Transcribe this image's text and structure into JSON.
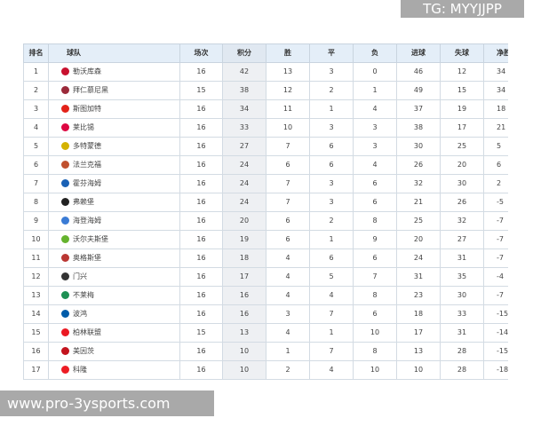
{
  "table": {
    "headers": [
      "排名",
      "球队",
      "场次",
      "积分",
      "胜",
      "平",
      "负",
      "进球",
      "失球",
      "净胜"
    ],
    "rows": [
      {
        "rank": "1",
        "team": "勒沃库森",
        "played": "16",
        "points": "42",
        "w": "13",
        "d": "3",
        "l": "0",
        "gf": "46",
        "ga": "12",
        "gd": "34",
        "logo_color": "#c8102e"
      },
      {
        "rank": "2",
        "team": "拜仁慕尼黑",
        "played": "15",
        "points": "38",
        "w": "12",
        "d": "2",
        "l": "1",
        "gf": "49",
        "ga": "15",
        "gd": "34",
        "logo_color": "#9b2a3a"
      },
      {
        "rank": "3",
        "team": "斯图加特",
        "played": "16",
        "points": "34",
        "w": "11",
        "d": "1",
        "l": "4",
        "gf": "37",
        "ga": "19",
        "gd": "18",
        "logo_color": "#e32219"
      },
      {
        "rank": "4",
        "team": "莱比锡",
        "played": "16",
        "points": "33",
        "w": "10",
        "d": "3",
        "l": "3",
        "gf": "38",
        "ga": "17",
        "gd": "21",
        "logo_color": "#dd0741"
      },
      {
        "rank": "5",
        "team": "多特蒙德",
        "played": "16",
        "points": "27",
        "w": "7",
        "d": "6",
        "l": "3",
        "gf": "30",
        "ga": "25",
        "gd": "5",
        "logo_color": "#d4b200"
      },
      {
        "rank": "6",
        "team": "法兰克福",
        "played": "16",
        "points": "24",
        "w": "6",
        "d": "6",
        "l": "4",
        "gf": "26",
        "ga": "20",
        "gd": "6",
        "logo_color": "#c0502e"
      },
      {
        "rank": "7",
        "team": "霍芬海姆",
        "played": "16",
        "points": "24",
        "w": "7",
        "d": "3",
        "l": "6",
        "gf": "32",
        "ga": "30",
        "gd": "2",
        "logo_color": "#1961b5"
      },
      {
        "rank": "8",
        "team": "弗赖堡",
        "played": "16",
        "points": "24",
        "w": "7",
        "d": "3",
        "l": "6",
        "gf": "21",
        "ga": "26",
        "gd": "-5",
        "logo_color": "#222222"
      },
      {
        "rank": "9",
        "team": "海登海姆",
        "played": "16",
        "points": "20",
        "w": "6",
        "d": "2",
        "l": "8",
        "gf": "25",
        "ga": "32",
        "gd": "-7",
        "logo_color": "#3a7bd5"
      },
      {
        "rank": "10",
        "team": "沃尔夫斯堡",
        "played": "16",
        "points": "19",
        "w": "6",
        "d": "1",
        "l": "9",
        "gf": "20",
        "ga": "27",
        "gd": "-7",
        "logo_color": "#65b32e"
      },
      {
        "rank": "11",
        "team": "奥格斯堡",
        "played": "16",
        "points": "18",
        "w": "4",
        "d": "6",
        "l": "6",
        "gf": "24",
        "ga": "31",
        "gd": "-7",
        "logo_color": "#ba3733"
      },
      {
        "rank": "12",
        "team": "门兴",
        "played": "16",
        "points": "17",
        "w": "4",
        "d": "5",
        "l": "7",
        "gf": "31",
        "ga": "35",
        "gd": "-4",
        "logo_color": "#333333"
      },
      {
        "rank": "13",
        "team": "不莱梅",
        "played": "16",
        "points": "16",
        "w": "4",
        "d": "4",
        "l": "8",
        "gf": "23",
        "ga": "30",
        "gd": "-7",
        "logo_color": "#1d9053"
      },
      {
        "rank": "14",
        "team": "波鸿",
        "played": "16",
        "points": "16",
        "w": "3",
        "d": "7",
        "l": "6",
        "gf": "18",
        "ga": "33",
        "gd": "-15",
        "logo_color": "#005ca9"
      },
      {
        "rank": "15",
        "team": "柏林联盟",
        "played": "15",
        "points": "13",
        "w": "4",
        "d": "1",
        "l": "10",
        "gf": "17",
        "ga": "31",
        "gd": "-14",
        "logo_color": "#eb1923"
      },
      {
        "rank": "16",
        "team": "美因茨",
        "played": "16",
        "points": "10",
        "w": "1",
        "d": "7",
        "l": "8",
        "gf": "13",
        "ga": "28",
        "gd": "-15",
        "logo_color": "#c3141e"
      },
      {
        "rank": "17",
        "team": "科隆",
        "played": "16",
        "points": "10",
        "w": "2",
        "d": "4",
        "l": "10",
        "gf": "10",
        "ga": "28",
        "gd": "-18",
        "logo_color": "#ed1c24"
      }
    ]
  },
  "watermarks": {
    "top_right": "TG: MYYJJPP",
    "bottom_left": "www.pro-3ysports.com"
  }
}
